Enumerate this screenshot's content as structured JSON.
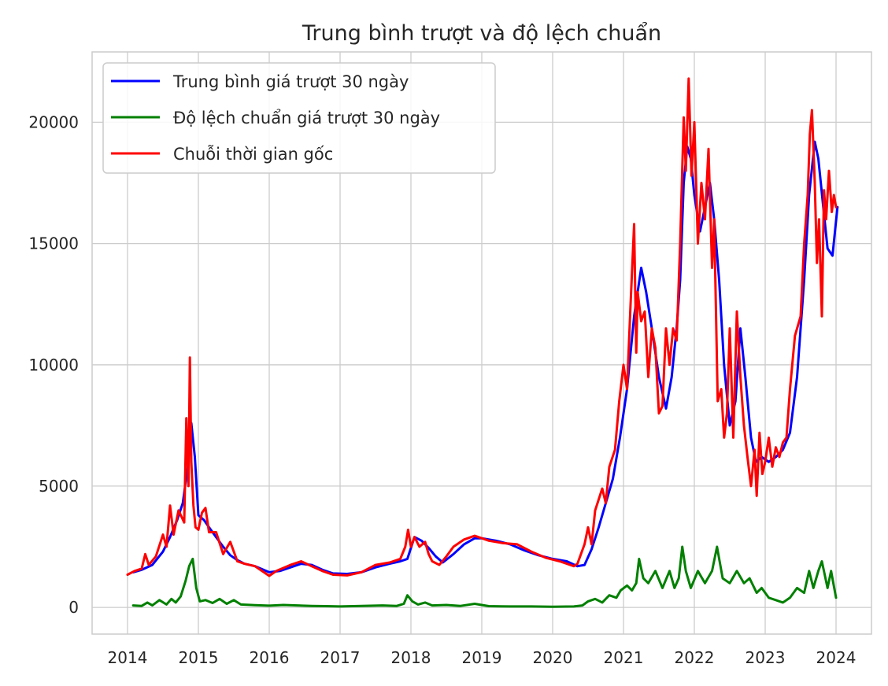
{
  "chart_data": {
    "type": "line",
    "title": "Trung bình trượt và độ lệch chuẩn",
    "xlabel": "",
    "ylabel": "",
    "xlim": [
      2013.5,
      2024.5
    ],
    "ylim": [
      -1100,
      22900
    ],
    "xticks": [
      2014,
      2015,
      2016,
      2017,
      2018,
      2019,
      2020,
      2021,
      2022,
      2023,
      2024
    ],
    "yticks": [
      0,
      5000,
      10000,
      15000,
      20000
    ],
    "grid": true,
    "legend": "top-left",
    "series": [
      {
        "name": "Trung bình giá trượt 30 ngày",
        "color": "#0000ff",
        "x": [
          2014.08,
          2014.2,
          2014.35,
          2014.5,
          2014.6,
          2014.7,
          2014.78,
          2014.85,
          2014.9,
          2014.95,
          2015.0,
          2015.08,
          2015.15,
          2015.25,
          2015.35,
          2015.45,
          2015.55,
          2015.65,
          2015.8,
          2016.0,
          2016.15,
          2016.3,
          2016.45,
          2016.6,
          2016.75,
          2016.9,
          2017.1,
          2017.3,
          2017.5,
          2017.7,
          2017.85,
          2017.95,
          2018.05,
          2018.15,
          2018.25,
          2018.35,
          2018.45,
          2018.6,
          2018.75,
          2018.9,
          2019.0,
          2019.2,
          2019.4,
          2019.6,
          2019.8,
          2020.0,
          2020.2,
          2020.35,
          2020.45,
          2020.55,
          2020.65,
          2020.75,
          2020.85,
          2020.95,
          2021.05,
          2021.15,
          2021.25,
          2021.32,
          2021.4,
          2021.5,
          2021.6,
          2021.68,
          2021.75,
          2021.8,
          2021.85,
          2021.9,
          2021.95,
          2022.0,
          2022.08,
          2022.15,
          2022.22,
          2022.28,
          2022.35,
          2022.42,
          2022.5,
          2022.58,
          2022.65,
          2022.72,
          2022.8,
          2022.87,
          2022.95,
          2023.05,
          2023.15,
          2023.25,
          2023.35,
          2023.45,
          2023.55,
          2023.62,
          2023.7,
          2023.75,
          2023.82,
          2023.88,
          2023.95,
          2024.02
        ],
        "y": [
          1450,
          1550,
          1750,
          2300,
          2900,
          3600,
          4300,
          5800,
          7600,
          6200,
          3800,
          3600,
          3300,
          2900,
          2500,
          2150,
          1950,
          1800,
          1700,
          1450,
          1500,
          1650,
          1800,
          1750,
          1550,
          1400,
          1380,
          1450,
          1650,
          1800,
          1900,
          2000,
          2900,
          2750,
          2450,
          2100,
          1850,
          2200,
          2600,
          2850,
          2850,
          2750,
          2600,
          2350,
          2150,
          2000,
          1900,
          1700,
          1750,
          2400,
          3300,
          4300,
          5300,
          7000,
          9000,
          12000,
          14000,
          13000,
          11500,
          9500,
          8200,
          9500,
          11500,
          13500,
          17500,
          19000,
          18500,
          17000,
          15500,
          16500,
          17500,
          16000,
          13500,
          10000,
          7500,
          8500,
          11500,
          9500,
          7000,
          6000,
          6200,
          6000,
          6200,
          6500,
          7200,
          9500,
          13500,
          17000,
          19200,
          18500,
          16500,
          14800,
          14500,
          16500
        ]
      },
      {
        "name": "Độ lệch chuẩn giá trượt 30 ngày",
        "color": "#008000",
        "x": [
          2014.08,
          2014.2,
          2014.28,
          2014.35,
          2014.45,
          2014.55,
          2014.62,
          2014.68,
          2014.75,
          2014.82,
          2014.87,
          2014.92,
          2014.97,
          2015.02,
          2015.1,
          2015.2,
          2015.3,
          2015.4,
          2015.5,
          2015.6,
          2015.8,
          2016.0,
          2016.2,
          2016.4,
          2016.6,
          2016.8,
          2017.0,
          2017.3,
          2017.6,
          2017.8,
          2017.9,
          2017.95,
          2018.02,
          2018.1,
          2018.2,
          2018.3,
          2018.5,
          2018.7,
          2018.9,
          2019.1,
          2019.4,
          2019.7,
          2020.0,
          2020.3,
          2020.42,
          2020.5,
          2020.6,
          2020.7,
          2020.8,
          2020.9,
          2020.96,
          2021.05,
          2021.12,
          2021.18,
          2021.22,
          2021.28,
          2021.35,
          2021.45,
          2021.55,
          2021.65,
          2021.72,
          2021.78,
          2021.83,
          2021.88,
          2021.95,
          2022.05,
          2022.15,
          2022.25,
          2022.32,
          2022.4,
          2022.5,
          2022.6,
          2022.7,
          2022.78,
          2022.88,
          2022.95,
          2023.05,
          2023.15,
          2023.25,
          2023.35,
          2023.45,
          2023.55,
          2023.62,
          2023.68,
          2023.75,
          2023.8,
          2023.88,
          2023.93,
          2024.0
        ],
        "y": [
          80,
          60,
          200,
          80,
          300,
          120,
          350,
          200,
          450,
          1100,
          1700,
          2000,
          800,
          250,
          300,
          180,
          350,
          150,
          300,
          120,
          90,
          70,
          100,
          80,
          60,
          50,
          40,
          60,
          80,
          60,
          150,
          500,
          250,
          120,
          200,
          80,
          100,
          60,
          150,
          50,
          40,
          40,
          30,
          40,
          80,
          250,
          350,
          200,
          500,
          400,
          700,
          900,
          700,
          1000,
          2000,
          1200,
          1000,
          1500,
          800,
          1500,
          800,
          1200,
          2500,
          1500,
          800,
          1500,
          1000,
          1500,
          2500,
          1200,
          1000,
          1500,
          1000,
          1200,
          600,
          800,
          400,
          300,
          200,
          400,
          800,
          600,
          1500,
          800,
          1500,
          1900,
          800,
          1500,
          400
        ]
      },
      {
        "name": "Chuỗi thời gian gốc",
        "color": "#ff0000",
        "x": [
          2014.0,
          2014.1,
          2014.2,
          2014.25,
          2014.3,
          2014.4,
          2014.5,
          2014.55,
          2014.6,
          2014.65,
          2014.72,
          2014.8,
          2014.83,
          2014.86,
          2014.88,
          2014.9,
          2014.93,
          2014.96,
          2015.0,
          2015.05,
          2015.1,
          2015.15,
          2015.25,
          2015.35,
          2015.45,
          2015.55,
          2015.65,
          2015.8,
          2016.0,
          2016.1,
          2016.3,
          2016.45,
          2016.6,
          2016.75,
          2016.9,
          2017.1,
          2017.3,
          2017.5,
          2017.7,
          2017.85,
          2017.92,
          2017.96,
          2018.0,
          2018.05,
          2018.12,
          2018.2,
          2018.25,
          2018.3,
          2018.4,
          2018.5,
          2018.6,
          2018.75,
          2018.9,
          2019.1,
          2019.3,
          2019.5,
          2019.7,
          2019.9,
          2020.1,
          2020.3,
          2020.35,
          2020.45,
          2020.5,
          2020.55,
          2020.6,
          2020.7,
          2020.75,
          2020.8,
          2020.88,
          2020.94,
          2021.0,
          2021.05,
          2021.1,
          2021.15,
          2021.18,
          2021.2,
          2021.25,
          2021.3,
          2021.35,
          2021.4,
          2021.45,
          2021.5,
          2021.55,
          2021.6,
          2021.65,
          2021.7,
          2021.75,
          2021.8,
          2021.85,
          2021.88,
          2021.92,
          2021.96,
          2022.0,
          2022.05,
          2022.1,
          2022.15,
          2022.2,
          2022.25,
          2022.28,
          2022.33,
          2022.38,
          2022.42,
          2022.46,
          2022.5,
          2022.55,
          2022.6,
          2022.65,
          2022.7,
          2022.75,
          2022.8,
          2022.85,
          2022.88,
          2022.92,
          2022.96,
          2023.0,
          2023.05,
          2023.1,
          2023.15,
          2023.2,
          2023.25,
          2023.3,
          2023.35,
          2023.42,
          2023.5,
          2023.55,
          2023.6,
          2023.63,
          2023.66,
          2023.7,
          2023.73,
          2023.76,
          2023.8,
          2023.83,
          2023.86,
          2023.9,
          2023.94,
          2023.97,
          2024.0
        ],
        "y": [
          1350,
          1500,
          1600,
          2200,
          1750,
          2100,
          3000,
          2500,
          4200,
          3000,
          4000,
          3500,
          7800,
          5000,
          10300,
          6000,
          4200,
          3300,
          3200,
          3900,
          4100,
          3100,
          3100,
          2200,
          2700,
          1900,
          1800,
          1700,
          1300,
          1500,
          1750,
          1900,
          1700,
          1500,
          1350,
          1320,
          1450,
          1750,
          1850,
          2000,
          2500,
          3200,
          2500,
          2900,
          2500,
          2700,
          2200,
          1900,
          1750,
          2100,
          2500,
          2800,
          2950,
          2750,
          2650,
          2600,
          2300,
          2050,
          1900,
          1700,
          1800,
          2600,
          3300,
          2600,
          4000,
          4900,
          4300,
          5800,
          6500,
          8500,
          10000,
          9000,
          12500,
          15800,
          10500,
          13000,
          11800,
          12200,
          9500,
          11500,
          10700,
          8000,
          8300,
          11500,
          10000,
          11500,
          11000,
          15000,
          20200,
          18000,
          21800,
          17800,
          20000,
          15000,
          17500,
          16000,
          18900,
          14000,
          16000,
          8500,
          9000,
          7000,
          8000,
          11500,
          7000,
          12200,
          9500,
          7500,
          6200,
          5000,
          6500,
          4600,
          7200,
          5500,
          6000,
          7000,
          5800,
          6600,
          6200,
          6800,
          7000,
          9000,
          11200,
          12000,
          15000,
          17000,
          19500,
          20500,
          17500,
          14200,
          16000,
          12000,
          17200,
          16000,
          18000,
          16300,
          17000,
          16500
        ]
      }
    ]
  }
}
